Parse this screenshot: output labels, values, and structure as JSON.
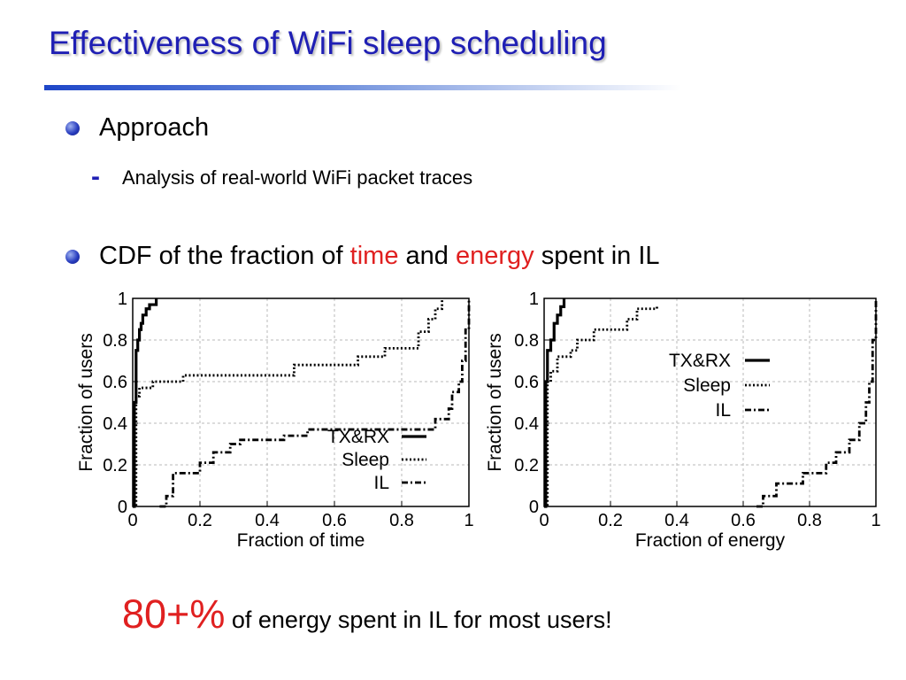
{
  "slide": {
    "title": "Effectiveness of WiFi sleep scheduling",
    "bullet1": "Approach",
    "sub1": "Analysis of real-world WiFi packet traces",
    "bullet2_pre": "CDF of the fraction of ",
    "bullet2_time": "time",
    "bullet2_mid": " and ",
    "bullet2_energy": "energy",
    "bullet2_post": " spent in IL",
    "footer_big": "80+%",
    "footer_rest": " of energy spent in IL for most users!",
    "colors": {
      "title": "#1f1fb4",
      "highlight": "#e02020"
    }
  },
  "chart_data": [
    {
      "type": "line",
      "xlabel": "Fraction of time",
      "ylabel": "Fraction of users",
      "xlim": [
        0,
        1
      ],
      "ylim": [
        0,
        1
      ],
      "xticks": [
        "0",
        "0.2",
        "0.4",
        "0.6",
        "0.8",
        "1"
      ],
      "yticks": [
        "0",
        "0.2",
        "0.4",
        "0.6",
        "0.8",
        "1"
      ],
      "grid": true,
      "legend_position": "bottom-right",
      "series": [
        {
          "name": "TX&RX",
          "style": "solid",
          "x": [
            0,
            0.005,
            0.01,
            0.015,
            0.02,
            0.025,
            0.03,
            0.04,
            0.05,
            0.07
          ],
          "y": [
            0,
            0.5,
            0.75,
            0.8,
            0.85,
            0.88,
            0.92,
            0.95,
            0.97,
            1.0
          ]
        },
        {
          "name": "Sleep",
          "style": "dotted",
          "x": [
            0,
            0.01,
            0.02,
            0.06,
            0.15,
            0.33,
            0.48,
            0.67,
            0.75,
            0.85,
            0.88,
            0.9,
            0.92
          ],
          "y": [
            0,
            0.53,
            0.57,
            0.6,
            0.63,
            0.63,
            0.68,
            0.72,
            0.76,
            0.84,
            0.9,
            0.95,
            1.0
          ]
        },
        {
          "name": "IL",
          "style": "dash-dot",
          "x": [
            0.08,
            0.1,
            0.12,
            0.2,
            0.24,
            0.29,
            0.32,
            0.45,
            0.52,
            0.9,
            0.94,
            0.95,
            0.97,
            0.98,
            0.99,
            1.0
          ],
          "y": [
            0,
            0.05,
            0.16,
            0.21,
            0.26,
            0.3,
            0.32,
            0.34,
            0.37,
            0.42,
            0.47,
            0.55,
            0.6,
            0.7,
            0.85,
            1.0
          ]
        }
      ]
    },
    {
      "type": "line",
      "xlabel": "Fraction of energy",
      "ylabel": "Fraction of users",
      "xlim": [
        0,
        1
      ],
      "ylim": [
        0,
        1
      ],
      "xticks": [
        "0",
        "0.2",
        "0.4",
        "0.6",
        "0.8",
        "1"
      ],
      "yticks": [
        "0",
        "0.2",
        "0.4",
        "0.6",
        "0.8",
        "1"
      ],
      "grid": true,
      "legend_position": "top-right",
      "series": [
        {
          "name": "TX&RX",
          "style": "solid",
          "x": [
            0,
            0.005,
            0.01,
            0.02,
            0.03,
            0.04,
            0.05,
            0.06
          ],
          "y": [
            0,
            0.6,
            0.75,
            0.8,
            0.88,
            0.92,
            0.96,
            1.0
          ]
        },
        {
          "name": "Sleep",
          "style": "dotted",
          "x": [
            0,
            0.01,
            0.02,
            0.04,
            0.08,
            0.1,
            0.15,
            0.25,
            0.28,
            0.34
          ],
          "y": [
            0,
            0.6,
            0.65,
            0.72,
            0.75,
            0.8,
            0.85,
            0.9,
            0.95,
            0.97
          ]
        },
        {
          "name": "IL",
          "style": "dash-dot",
          "x": [
            0.64,
            0.66,
            0.7,
            0.78,
            0.85,
            0.88,
            0.92,
            0.95,
            0.97,
            0.98,
            0.99,
            1.0
          ],
          "y": [
            0,
            0.05,
            0.11,
            0.16,
            0.21,
            0.26,
            0.32,
            0.4,
            0.5,
            0.6,
            0.8,
            1.0
          ]
        }
      ]
    }
  ]
}
